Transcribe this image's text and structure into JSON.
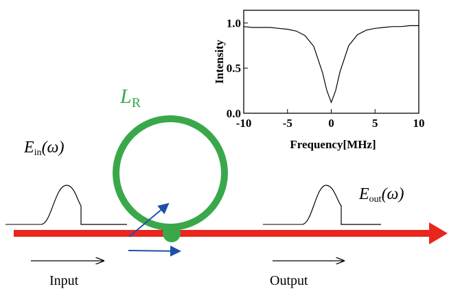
{
  "labels": {
    "ring": {
      "symbol": "L",
      "subscript": "R"
    },
    "input_field": {
      "symbol": "E",
      "subscript": "in",
      "argument": "(ω)"
    },
    "output_field": {
      "symbol": "E",
      "subscript": "out",
      "argument": "(ω)"
    },
    "input": "Input",
    "output": "Output"
  },
  "chart_data": {
    "type": "line",
    "ylabel": "Intensity",
    "xlabel": "Frequency[MHz]",
    "x": [
      -10,
      -9,
      -8,
      -7,
      -6,
      -5,
      -4,
      -3,
      -2,
      -1,
      -0.5,
      0,
      0.5,
      1,
      2,
      3,
      4,
      5,
      6,
      7,
      8,
      9,
      10
    ],
    "series": [
      {
        "color": "#000000",
        "values": [
          0.96,
          0.95,
          0.95,
          0.95,
          0.94,
          0.93,
          0.91,
          0.86,
          0.74,
          0.45,
          0.25,
          0.12,
          0.25,
          0.46,
          0.75,
          0.87,
          0.92,
          0.94,
          0.95,
          0.96,
          0.96,
          0.97,
          0.97
        ]
      }
    ],
    "xlim": [
      -10,
      10
    ],
    "xticks": [
      -10,
      -5,
      0,
      5,
      10
    ],
    "ylim": [
      0,
      1.14
    ],
    "yticks": [
      {
        "value": 0,
        "label": "0.0"
      },
      {
        "value": 0.5,
        "label": "0.5"
      },
      {
        "value": 1,
        "label": "1.0"
      }
    ]
  }
}
